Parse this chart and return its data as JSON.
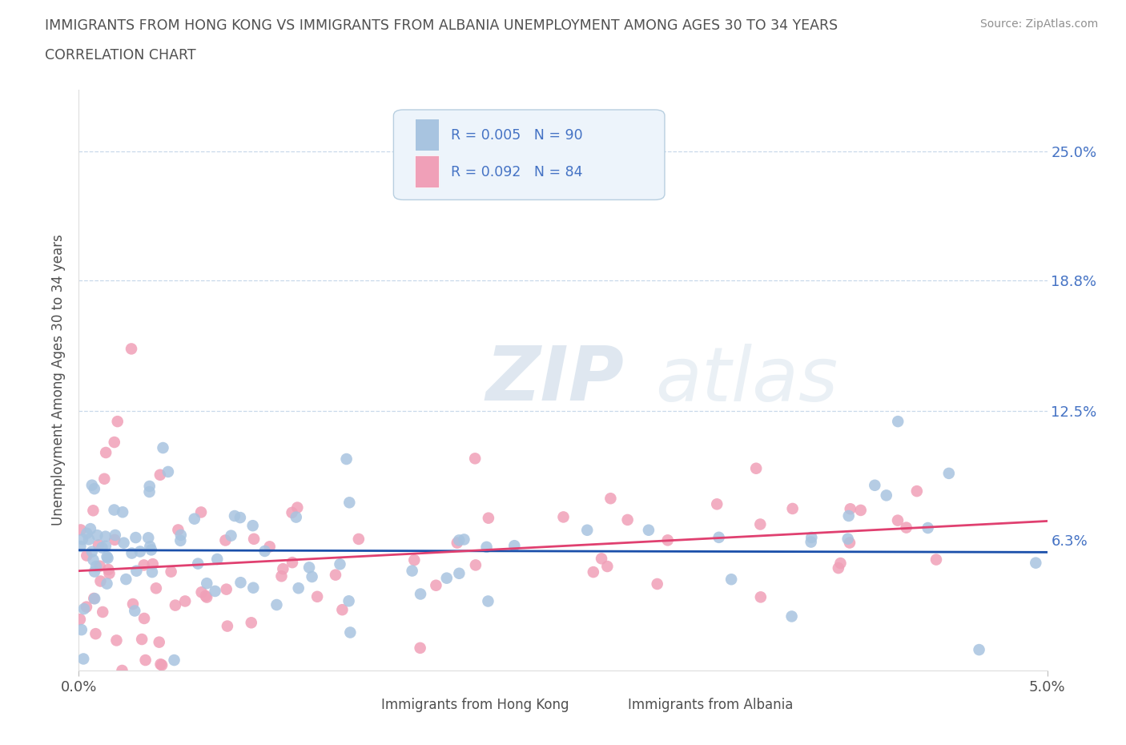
{
  "title_line1": "IMMIGRANTS FROM HONG KONG VS IMMIGRANTS FROM ALBANIA UNEMPLOYMENT AMONG AGES 30 TO 34 YEARS",
  "title_line2": "CORRELATION CHART",
  "source_text": "Source: ZipAtlas.com",
  "ylabel": "Unemployment Among Ages 30 to 34 years",
  "xlim": [
    0.0,
    0.05
  ],
  "ylim": [
    0.0,
    0.28
  ],
  "ytick_positions": [
    0.0,
    0.063,
    0.125,
    0.188,
    0.25
  ],
  "ytick_labels_right": [
    "",
    "6.3%",
    "12.5%",
    "18.8%",
    "25.0%"
  ],
  "xtick_positions": [
    0.0,
    0.05
  ],
  "xtick_labels": [
    "0.0%",
    "5.0%"
  ],
  "hk_R": "0.005",
  "hk_N": "90",
  "alb_R": "0.092",
  "alb_N": "84",
  "hk_color": "#a8c4e0",
  "alb_color": "#f0a0b8",
  "hk_line_color": "#1a4faa",
  "alb_line_color": "#e04070",
  "grid_color": "#c8d8ea",
  "background_color": "#ffffff",
  "title_color": "#505050",
  "ylabel_color": "#505050",
  "right_tick_color": "#4472c4",
  "watermark_zip": "ZIP",
  "watermark_atlas": "atlas",
  "source_color": "#909090",
  "legend_bg_color": "#edf4fb",
  "legend_border_color": "#b8cfe0",
  "legend_text_color": "#4472c4",
  "bottom_legend_text_color": "#505050"
}
